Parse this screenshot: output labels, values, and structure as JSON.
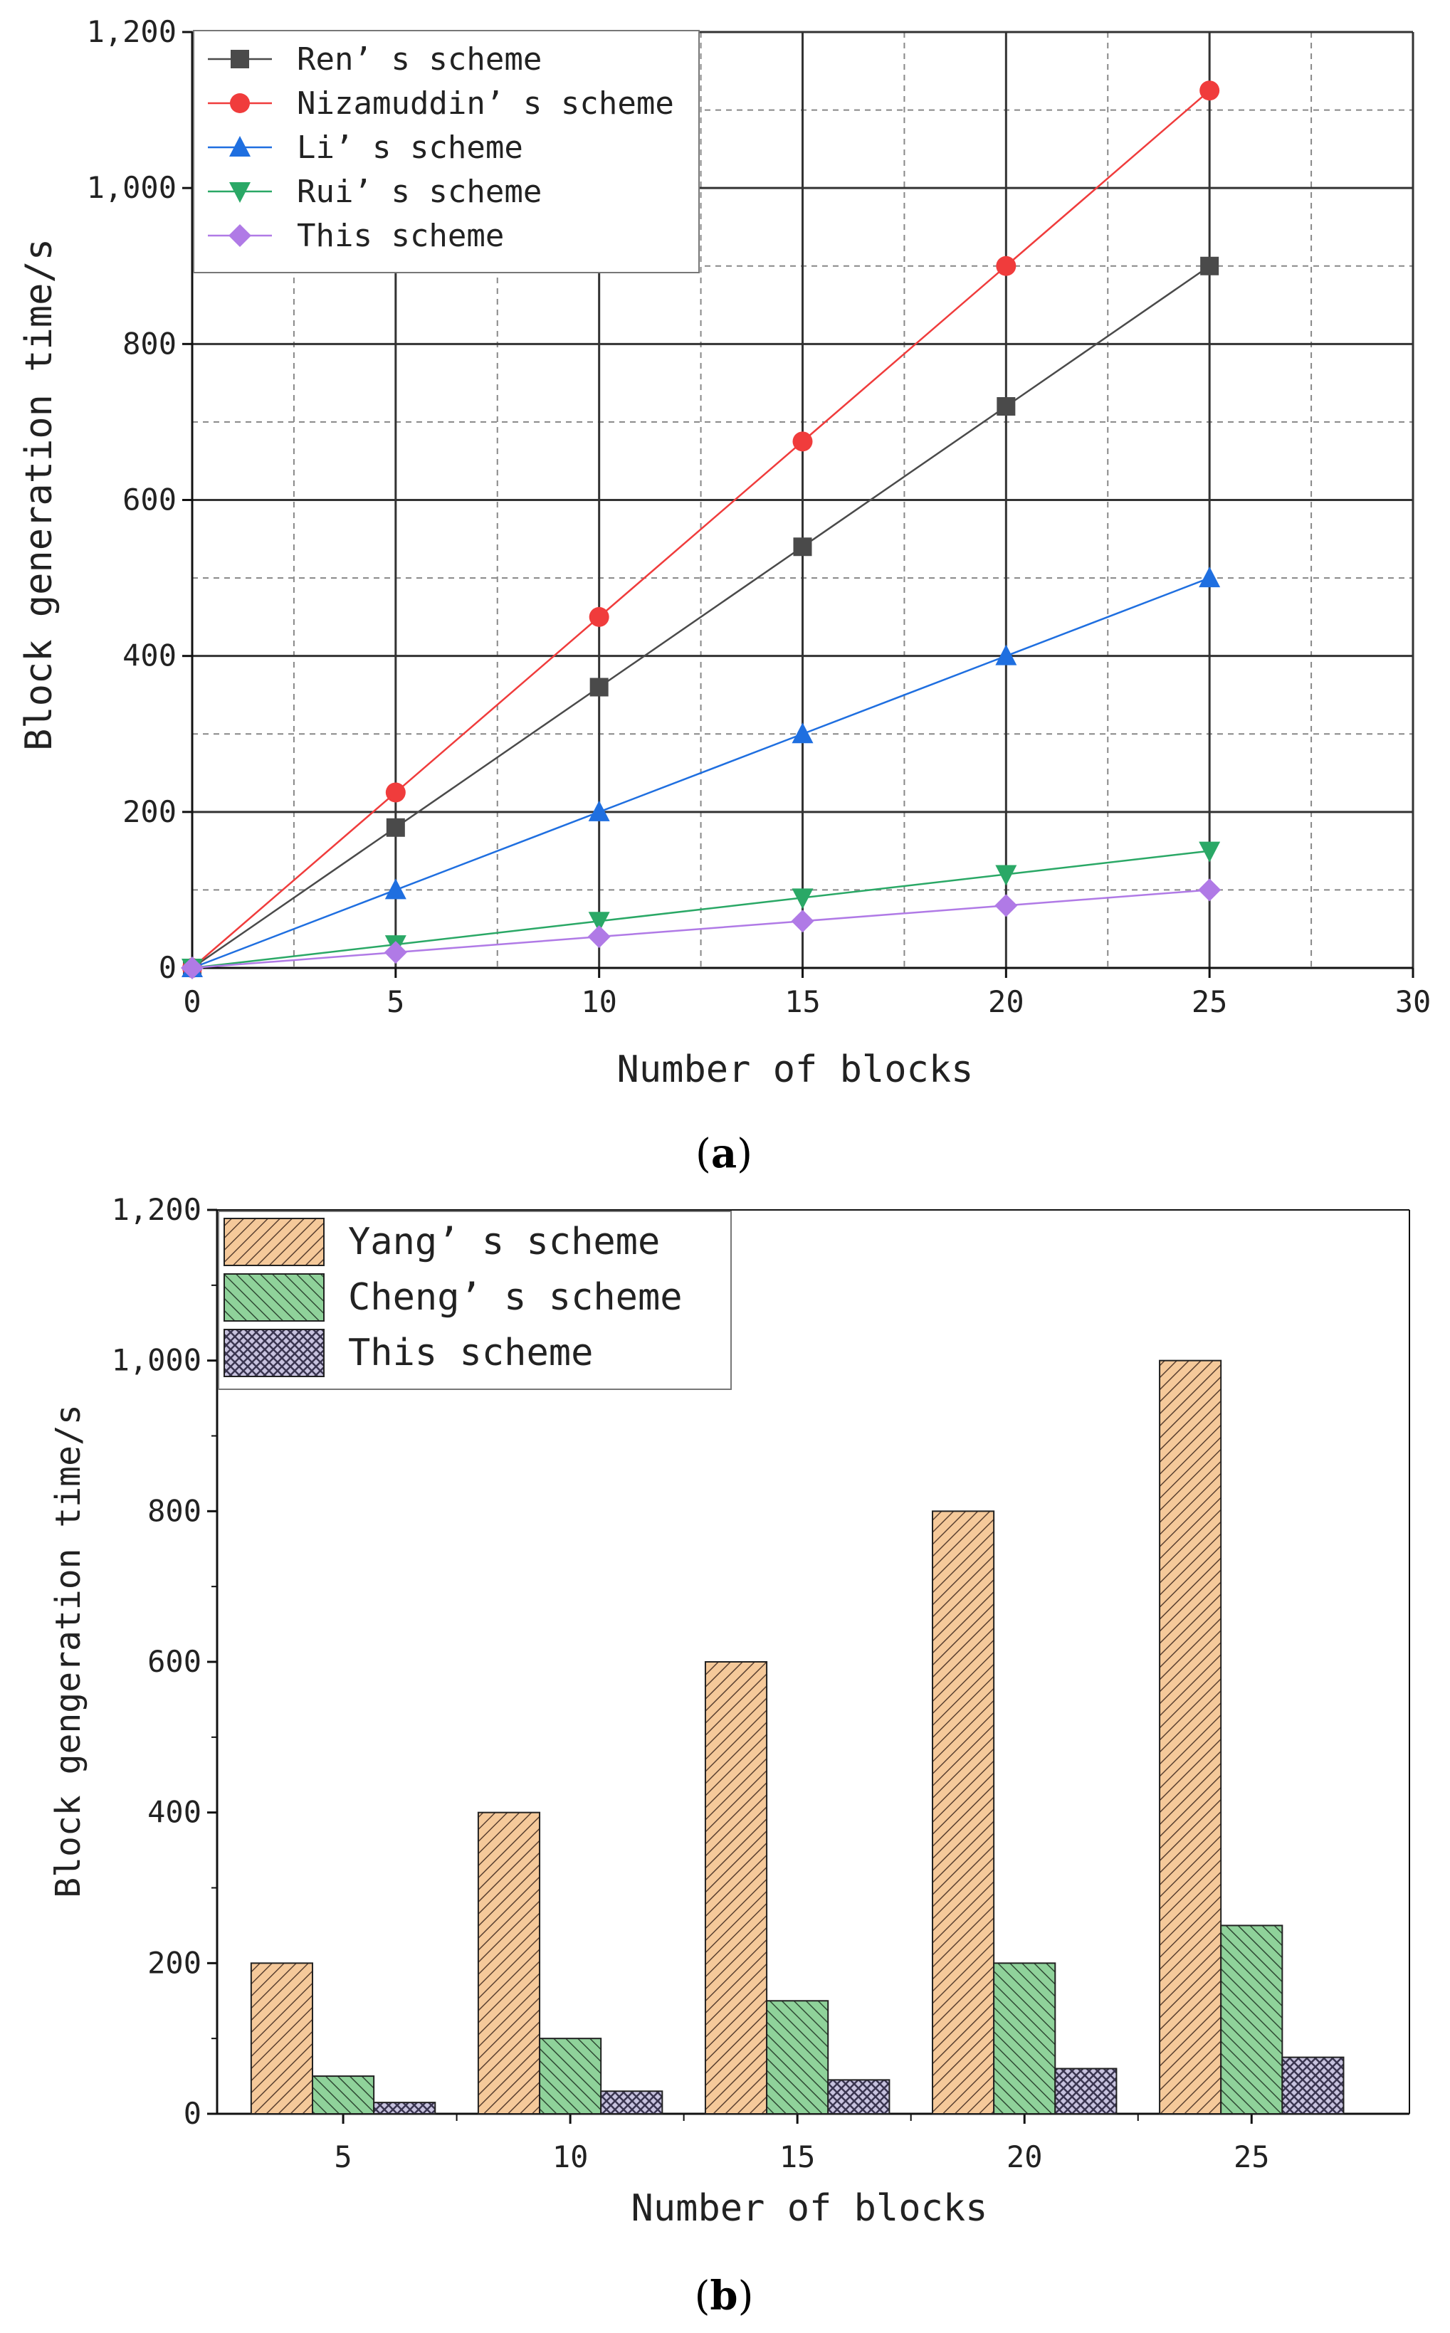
{
  "figure": {
    "caption_a_label": "a",
    "caption_b_label": "b",
    "paren_open": "(",
    "paren_close": ")"
  },
  "chart_data": [
    {
      "id": "a",
      "type": "line",
      "title": "",
      "xlabel": "Number of blocks",
      "ylabel": "Block generation time/s",
      "xlim": [
        0,
        30
      ],
      "ylim": [
        0,
        1200
      ],
      "xticks": [
        0,
        5,
        10,
        15,
        20,
        25,
        30
      ],
      "xtick_labels": [
        "0",
        "5",
        "10",
        "15",
        "20",
        "25",
        "30"
      ],
      "yticks": [
        0,
        200,
        400,
        600,
        800,
        1000,
        1200
      ],
      "ytick_labels": [
        "0",
        "200",
        "400",
        "600",
        "800",
        "1,000",
        "1,200"
      ],
      "grid": true,
      "legend_position": "top-left",
      "x": [
        0,
        5,
        10,
        15,
        20,
        25
      ],
      "series": [
        {
          "name": "Ren’ s scheme",
          "marker": "square",
          "color": "#4a4a4a",
          "values": [
            0,
            180,
            360,
            540,
            720,
            900
          ]
        },
        {
          "name": "Nizamuddin’ s scheme",
          "marker": "circle",
          "color": "#f03c3c",
          "values": [
            0,
            225,
            450,
            675,
            900,
            1125
          ]
        },
        {
          "name": "Li’ s scheme",
          "marker": "triangle-up",
          "color": "#1f6fe0",
          "values": [
            0,
            100,
            200,
            300,
            400,
            500
          ]
        },
        {
          "name": "Rui’ s scheme",
          "marker": "triangle-down",
          "color": "#2aa866",
          "values": [
            0,
            30,
            60,
            90,
            120,
            150
          ]
        },
        {
          "name": "This scheme",
          "marker": "diamond",
          "color": "#b07ae6",
          "values": [
            0,
            20,
            40,
            60,
            80,
            100
          ]
        }
      ]
    },
    {
      "id": "b",
      "type": "bar",
      "title": "",
      "xlabel": "Number of blocks",
      "ylabel": "Block gengeration time/s",
      "ylim": [
        0,
        1200
      ],
      "yticks": [
        0,
        200,
        400,
        600,
        800,
        1000,
        1200
      ],
      "ytick_labels": [
        "0",
        "200",
        "400",
        "600",
        "800",
        "1,000",
        "1,200"
      ],
      "categories": [
        "5",
        "10",
        "15",
        "20",
        "25"
      ],
      "legend_position": "top-left",
      "series": [
        {
          "name": "Yang’ s scheme",
          "color": "#f5c99a",
          "hatch": "diagonal",
          "values": [
            200,
            400,
            600,
            800,
            1000
          ]
        },
        {
          "name": "Cheng’ s scheme",
          "color": "#8fd29a",
          "hatch": "diagonal-reverse",
          "values": [
            50,
            100,
            150,
            200,
            250
          ]
        },
        {
          "name": "This scheme",
          "color": "#c7c2de",
          "hatch": "crosshatch",
          "values": [
            15,
            30,
            45,
            60,
            75
          ]
        }
      ]
    }
  ]
}
